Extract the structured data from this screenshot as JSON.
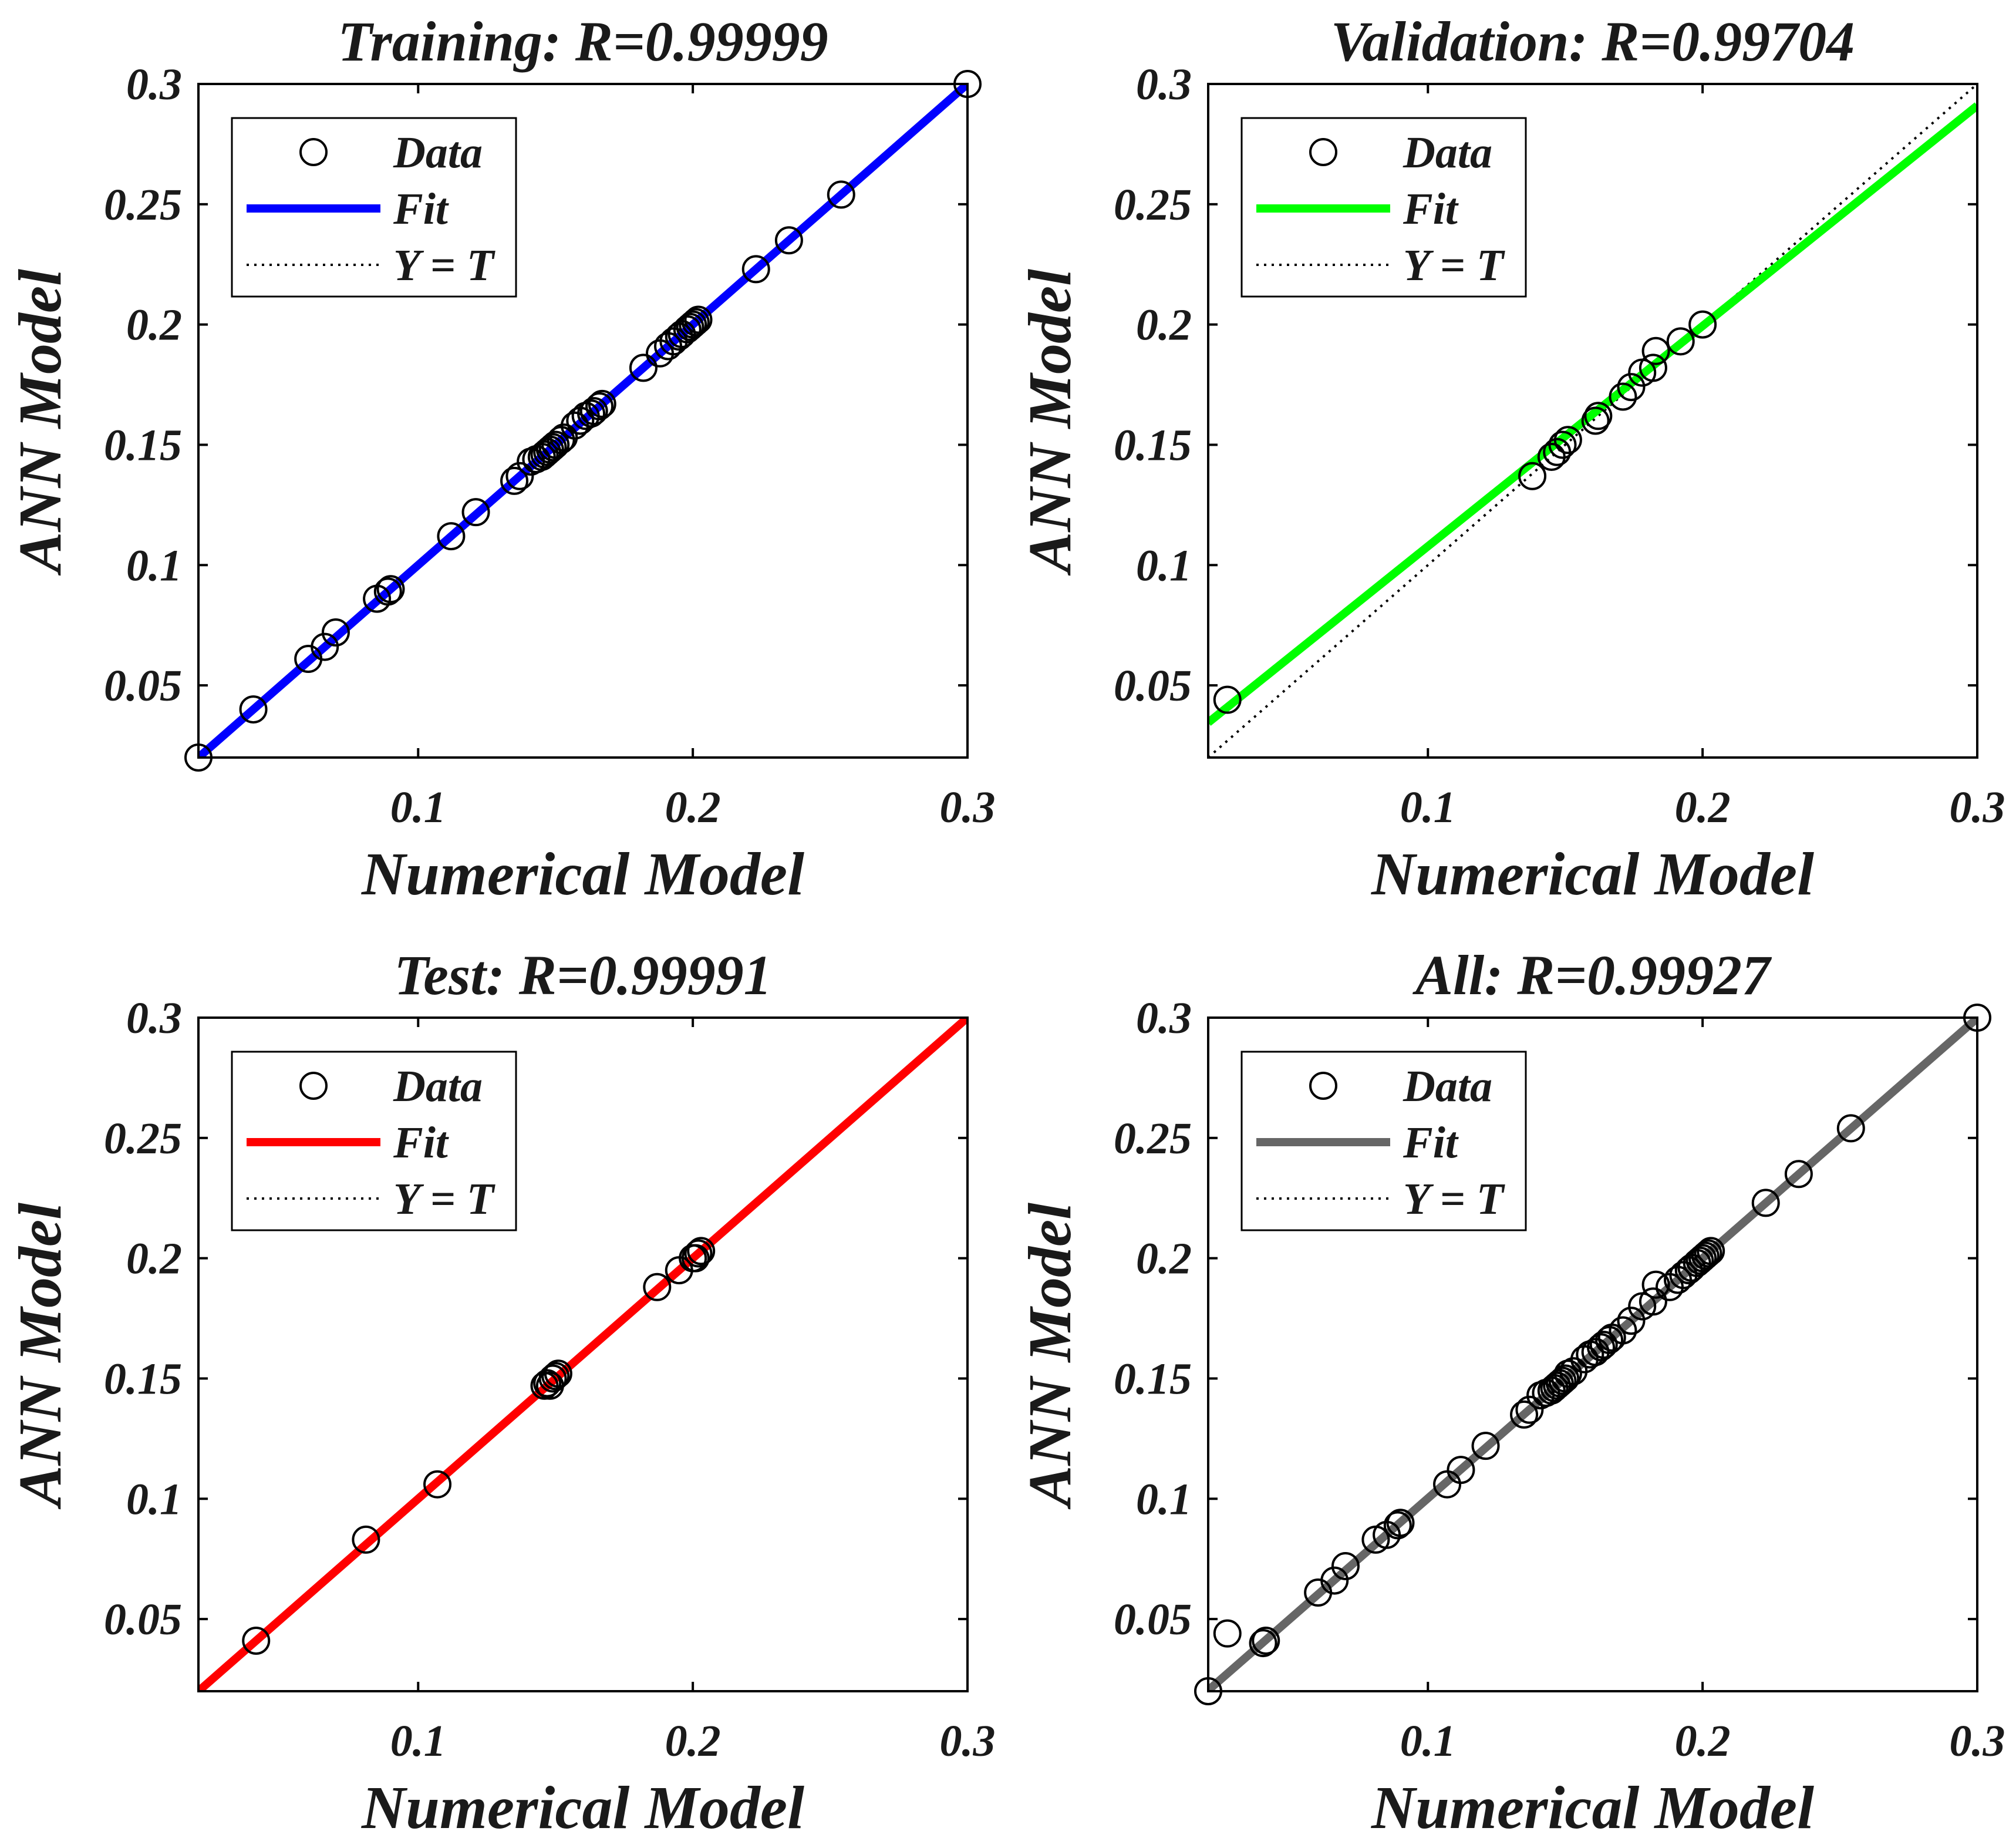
{
  "figure": {
    "style": {
      "axis_color": "#000000",
      "text_color": "#1a1a1a",
      "background": "#ffffff",
      "marker": "open-circle",
      "identity_line": "dotted"
    }
  },
  "chart_data": [
    {
      "type": "scatter",
      "title": "Training: R=0.99999",
      "xlabel": "Numerical Model",
      "ylabel": "ANN Model",
      "xlim": [
        0.02,
        0.3
      ],
      "ylim": [
        0.02,
        0.3
      ],
      "xticks": [
        0.1,
        0.2,
        0.3
      ],
      "xtick_labels": [
        "0.1",
        "0.2",
        "0.3"
      ],
      "yticks": [
        0.05,
        0.1,
        0.15,
        0.2,
        0.25,
        0.3
      ],
      "ytick_labels": [
        "0.05",
        "0.1",
        "0.15",
        "0.2",
        "0.25",
        "0.3"
      ],
      "fit_color": "#0000ff",
      "fit": {
        "slope": 1.0,
        "intercept": 0.0
      },
      "legend": {
        "position": "top-left",
        "entries": [
          "Data",
          "Fit",
          "Y = T"
        ]
      },
      "points": [
        [
          0.02,
          0.02
        ],
        [
          0.04,
          0.04
        ],
        [
          0.06,
          0.061
        ],
        [
          0.066,
          0.066
        ],
        [
          0.07,
          0.072
        ],
        [
          0.085,
          0.086
        ],
        [
          0.089,
          0.089
        ],
        [
          0.09,
          0.09
        ],
        [
          0.112,
          0.112
        ],
        [
          0.121,
          0.122
        ],
        [
          0.135,
          0.135
        ],
        [
          0.137,
          0.137
        ],
        [
          0.141,
          0.143
        ],
        [
          0.143,
          0.144
        ],
        [
          0.145,
          0.145
        ],
        [
          0.146,
          0.146
        ],
        [
          0.147,
          0.147
        ],
        [
          0.148,
          0.148
        ],
        [
          0.149,
          0.149
        ],
        [
          0.15,
          0.15
        ],
        [
          0.152,
          0.152
        ],
        [
          0.153,
          0.153
        ],
        [
          0.157,
          0.158
        ],
        [
          0.159,
          0.16
        ],
        [
          0.161,
          0.162
        ],
        [
          0.163,
          0.163
        ],
        [
          0.164,
          0.164
        ],
        [
          0.166,
          0.166
        ],
        [
          0.167,
          0.167
        ],
        [
          0.182,
          0.182
        ],
        [
          0.188,
          0.188
        ],
        [
          0.191,
          0.191
        ],
        [
          0.193,
          0.193
        ],
        [
          0.195,
          0.195
        ],
        [
          0.196,
          0.196
        ],
        [
          0.198,
          0.198
        ],
        [
          0.199,
          0.199
        ],
        [
          0.2,
          0.2
        ],
        [
          0.201,
          0.201
        ],
        [
          0.202,
          0.202
        ],
        [
          0.223,
          0.223
        ],
        [
          0.235,
          0.235
        ],
        [
          0.254,
          0.254
        ],
        [
          0.3,
          0.3
        ]
      ]
    },
    {
      "type": "scatter",
      "title": "Validation: R=0.99704",
      "xlabel": "Numerical Model",
      "ylabel": "ANN Model",
      "xlim": [
        0.02,
        0.3
      ],
      "ylim": [
        0.02,
        0.3
      ],
      "xticks": [
        0.1,
        0.2,
        0.3
      ],
      "xtick_labels": [
        "0.1",
        "0.2",
        "0.3"
      ],
      "yticks": [
        0.05,
        0.1,
        0.15,
        0.2,
        0.25,
        0.3
      ],
      "ytick_labels": [
        "0.05",
        "0.1",
        "0.15",
        "0.2",
        "0.25",
        "0.3"
      ],
      "fit_color": "#00ff00",
      "fit": {
        "slope": 0.916,
        "intercept": 0.0162
      },
      "legend": {
        "position": "top-left",
        "entries": [
          "Data",
          "Fit",
          "Y = T"
        ]
      },
      "points": [
        [
          0.027,
          0.044
        ],
        [
          0.138,
          0.137
        ],
        [
          0.145,
          0.145
        ],
        [
          0.147,
          0.147
        ],
        [
          0.149,
          0.15
        ],
        [
          0.151,
          0.152
        ],
        [
          0.161,
          0.16
        ],
        [
          0.162,
          0.162
        ],
        [
          0.171,
          0.17
        ],
        [
          0.174,
          0.174
        ],
        [
          0.178,
          0.18
        ],
        [
          0.182,
          0.182
        ],
        [
          0.183,
          0.189
        ],
        [
          0.192,
          0.193
        ],
        [
          0.2,
          0.2
        ]
      ]
    },
    {
      "type": "scatter",
      "title": "Test: R=0.99991",
      "xlabel": "Numerical Model",
      "ylabel": "ANN Model",
      "xlim": [
        0.02,
        0.3
      ],
      "ylim": [
        0.02,
        0.3
      ],
      "xticks": [
        0.1,
        0.2,
        0.3
      ],
      "xtick_labels": [
        "0.1",
        "0.2",
        "0.3"
      ],
      "yticks": [
        0.05,
        0.1,
        0.15,
        0.2,
        0.25,
        0.3
      ],
      "ytick_labels": [
        "0.05",
        "0.1",
        "0.15",
        "0.2",
        "0.25",
        "0.3"
      ],
      "fit_color": "#ff0000",
      "fit": {
        "slope": 1.0,
        "intercept": 0.0
      },
      "legend": {
        "position": "top-left",
        "entries": [
          "Data",
          "Fit",
          "Y = T"
        ]
      },
      "points": [
        [
          0.041,
          0.041
        ],
        [
          0.081,
          0.083
        ],
        [
          0.107,
          0.106
        ],
        [
          0.146,
          0.147
        ],
        [
          0.147,
          0.148
        ],
        [
          0.148,
          0.147
        ],
        [
          0.149,
          0.15
        ],
        [
          0.15,
          0.151
        ],
        [
          0.151,
          0.152
        ],
        [
          0.187,
          0.188
        ],
        [
          0.195,
          0.195
        ],
        [
          0.2,
          0.2
        ],
        [
          0.201,
          0.2
        ],
        [
          0.202,
          0.202
        ],
        [
          0.203,
          0.203
        ]
      ]
    },
    {
      "type": "scatter",
      "title": "All: R=0.99927",
      "xlabel": "Numerical Model",
      "ylabel": "ANN Model",
      "xlim": [
        0.02,
        0.3
      ],
      "ylim": [
        0.02,
        0.3
      ],
      "xticks": [
        0.1,
        0.2,
        0.3
      ],
      "xtick_labels": [
        "0.1",
        "0.2",
        "0.3"
      ],
      "yticks": [
        0.05,
        0.1,
        0.15,
        0.2,
        0.25,
        0.3
      ],
      "ytick_labels": [
        "0.05",
        "0.1",
        "0.15",
        "0.2",
        "0.25",
        "0.3"
      ],
      "fit_color": "#666666",
      "fit": {
        "slope": 0.998,
        "intercept": 0.0004
      },
      "legend": {
        "position": "top-left",
        "entries": [
          "Data",
          "Fit",
          "Y = T"
        ]
      },
      "points": [
        [
          0.02,
          0.02
        ],
        [
          0.027,
          0.044
        ],
        [
          0.04,
          0.04
        ],
        [
          0.041,
          0.041
        ],
        [
          0.06,
          0.061
        ],
        [
          0.066,
          0.066
        ],
        [
          0.07,
          0.072
        ],
        [
          0.081,
          0.083
        ],
        [
          0.085,
          0.085
        ],
        [
          0.089,
          0.089
        ],
        [
          0.09,
          0.09
        ],
        [
          0.107,
          0.106
        ],
        [
          0.112,
          0.112
        ],
        [
          0.121,
          0.122
        ],
        [
          0.135,
          0.135
        ],
        [
          0.137,
          0.137
        ],
        [
          0.141,
          0.143
        ],
        [
          0.143,
          0.144
        ],
        [
          0.145,
          0.145
        ],
        [
          0.146,
          0.146
        ],
        [
          0.147,
          0.147
        ],
        [
          0.148,
          0.148
        ],
        [
          0.149,
          0.149
        ],
        [
          0.15,
          0.15
        ],
        [
          0.151,
          0.152
        ],
        [
          0.153,
          0.153
        ],
        [
          0.157,
          0.158
        ],
        [
          0.159,
          0.16
        ],
        [
          0.161,
          0.161
        ],
        [
          0.163,
          0.163
        ],
        [
          0.164,
          0.164
        ],
        [
          0.166,
          0.166
        ],
        [
          0.167,
          0.167
        ],
        [
          0.171,
          0.17
        ],
        [
          0.174,
          0.174
        ],
        [
          0.178,
          0.18
        ],
        [
          0.182,
          0.182
        ],
        [
          0.183,
          0.189
        ],
        [
          0.188,
          0.188
        ],
        [
          0.191,
          0.191
        ],
        [
          0.193,
          0.193
        ],
        [
          0.195,
          0.195
        ],
        [
          0.196,
          0.196
        ],
        [
          0.198,
          0.198
        ],
        [
          0.199,
          0.199
        ],
        [
          0.2,
          0.2
        ],
        [
          0.201,
          0.201
        ],
        [
          0.202,
          0.202
        ],
        [
          0.203,
          0.203
        ],
        [
          0.223,
          0.223
        ],
        [
          0.235,
          0.235
        ],
        [
          0.254,
          0.254
        ],
        [
          0.3,
          0.3
        ]
      ]
    }
  ]
}
